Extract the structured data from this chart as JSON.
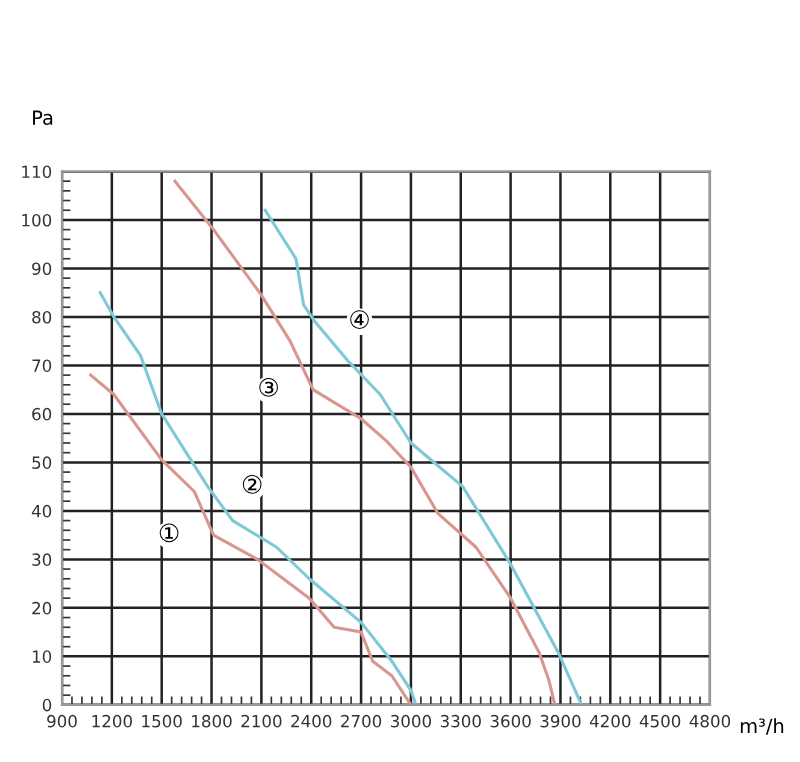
{
  "chart_data": {
    "type": "line",
    "xlabel": "m³/h",
    "ylabel": "Pa",
    "series": [
      {
        "name": "①",
        "color": "#d9958f",
        "x": [
          1073,
          1212,
          1500,
          1696,
          1812,
          2077,
          2388,
          2538,
          2700,
          2770,
          2885,
          3000
        ],
        "values": [
          68,
          64,
          50.5,
          44,
          35,
          30,
          22,
          16,
          15,
          9,
          6,
          0
        ]
      },
      {
        "name": "②",
        "color": "#7ec8d8",
        "x": [
          1130,
          1212,
          1373,
          1500,
          1777,
          1927,
          2192,
          2388,
          2700,
          2885,
          3000,
          3030
        ],
        "values": [
          85,
          80,
          72,
          60,
          45,
          38,
          32.5,
          26,
          17,
          9,
          3,
          0
        ]
      },
      {
        "name": "③",
        "color": "#d9958f",
        "x": [
          1580,
          1812,
          2100,
          2273,
          2411,
          2700,
          2850,
          3000,
          3162,
          3392,
          3600,
          3773,
          3831,
          3866
        ],
        "values": [
          108,
          98,
          84.5,
          75,
          65,
          59,
          54.5,
          49,
          39.5,
          32.5,
          22,
          10.7,
          5,
          0
        ]
      },
      {
        "name": "④",
        "color": "#7ec8d8",
        "x": [
          2123,
          2308,
          2354,
          2423,
          2619,
          2815,
          3000,
          3312,
          3600,
          3888,
          4027
        ],
        "values": [
          102,
          92,
          82.5,
          79,
          71,
          64,
          54,
          45,
          29,
          10.7,
          0
        ]
      }
    ],
    "xlim": [
      900,
      4800
    ],
    "xticks": [
      900,
      1200,
      1500,
      1800,
      2100,
      2400,
      2700,
      3000,
      3300,
      3600,
      3900,
      4200,
      4500,
      4800
    ],
    "ylim": [
      0,
      110
    ],
    "yticks": [
      0,
      10,
      20,
      30,
      40,
      50,
      60,
      70,
      80,
      90,
      100,
      110
    ],
    "grid": true,
    "marker": "none",
    "line_style": "solid"
  }
}
